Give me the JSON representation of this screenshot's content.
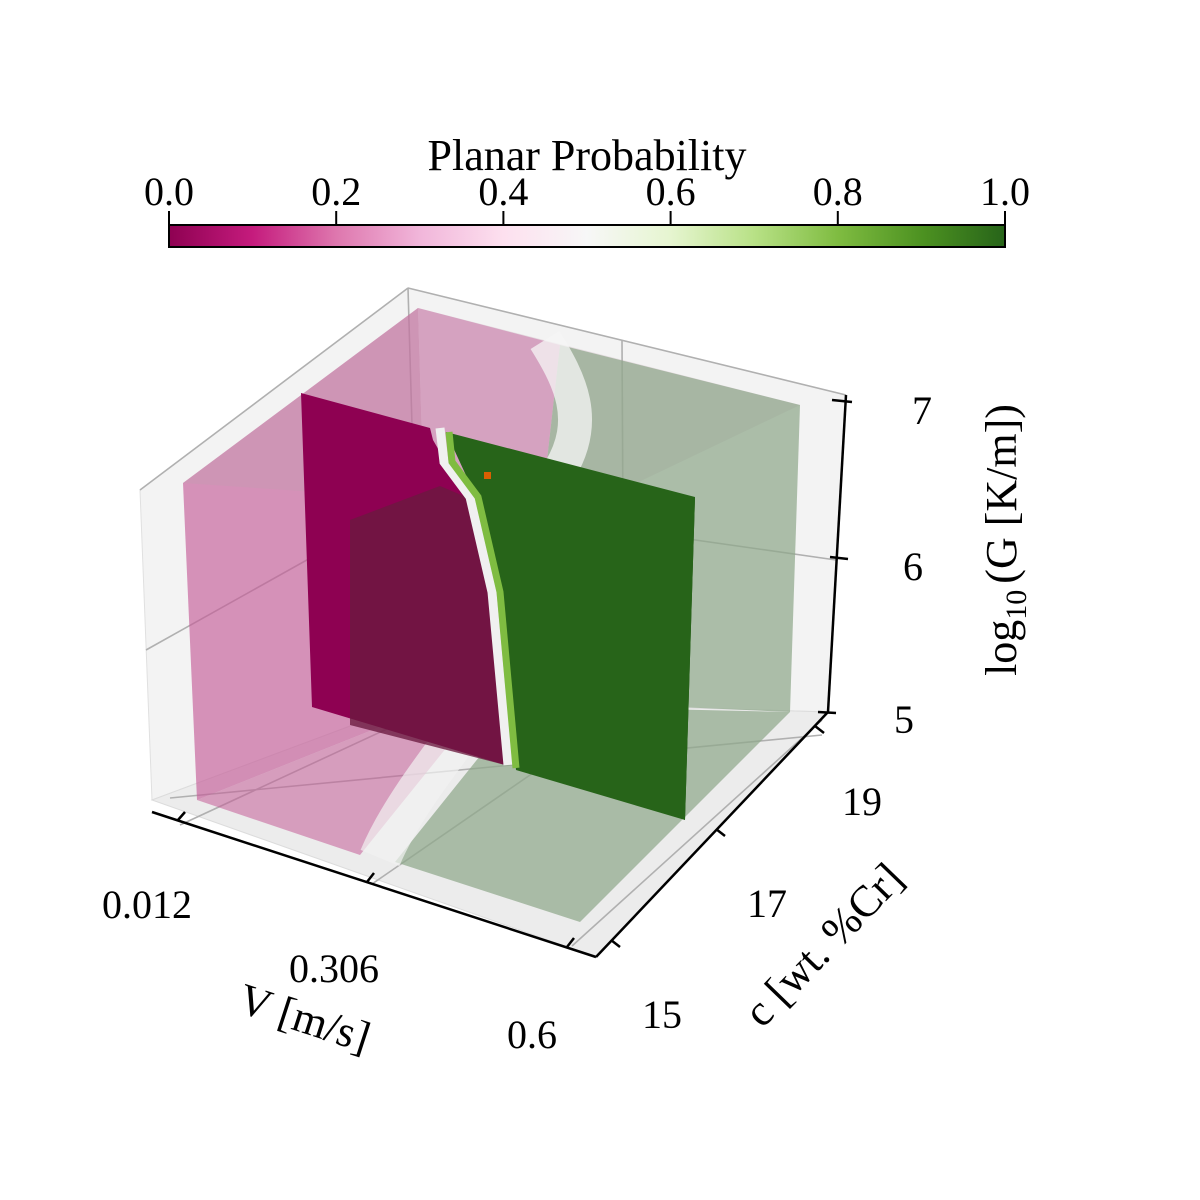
{
  "chart_data": {
    "type": "heatmap",
    "subtype": "3d-volume-slice",
    "colorbar": {
      "title": "Planar Probability",
      "colormap": "PiYG",
      "range": [
        0.0,
        1.0
      ],
      "ticks": [
        "0.0",
        "0.2",
        "0.4",
        "0.6",
        "0.8",
        "1.0"
      ],
      "colors": [
        "#8e0152",
        "#c51b7d",
        "#de77ae",
        "#f1b6da",
        "#fde0ef",
        "#f7f7f7",
        "#e6f5d0",
        "#b8e186",
        "#7fbc41",
        "#4d9221",
        "#276419"
      ]
    },
    "axes": {
      "x": {
        "label": "V [m/s]",
        "range": [
          0.012,
          0.6
        ],
        "ticks": [
          "0.012",
          "0.306",
          "0.6"
        ]
      },
      "y": {
        "label": "c [wt. %Cr]",
        "range": [
          15,
          19
        ],
        "ticks": [
          "15",
          "17",
          "19"
        ]
      },
      "z": {
        "label": "log",
        "label_sub": "10",
        "label_rest": "(G [K/m])",
        "range": [
          5,
          7
        ],
        "ticks": [
          "5",
          "6",
          "7"
        ]
      }
    },
    "boundary_planar_probability": 0.5,
    "slice_boundary_v": [
      0.18,
      0.2,
      0.23,
      0.25,
      0.28,
      0.3,
      0.31
    ],
    "slice_boundary_log10G": [
      7.0,
      6.7,
      6.4,
      6.1,
      5.8,
      5.5,
      5.0
    ],
    "highlight_point": {
      "color": "#d95f02"
    },
    "grid": true,
    "background_panes": "#f2f2f2"
  }
}
